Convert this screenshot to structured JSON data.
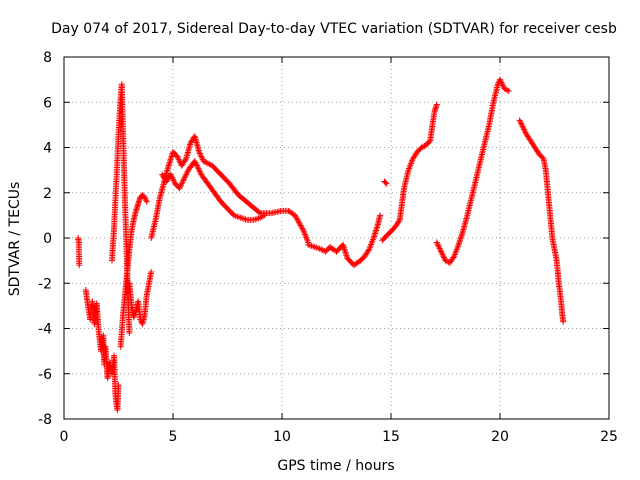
{
  "chart_data": {
    "type": "scatter",
    "title": "Day 074 of 2017, Sidereal Day-to-day VTEC variation (SDTVAR) for receiver cesb",
    "xlabel": "GPS time / hours",
    "ylabel": "SDTVAR / TECUs",
    "xlim": [
      0,
      25
    ],
    "ylim": [
      -8,
      8
    ],
    "xticks": [
      0,
      5,
      10,
      15,
      20,
      25
    ],
    "yticks": [
      -8,
      -6,
      -4,
      -2,
      0,
      2,
      4,
      6,
      8
    ],
    "grid": true,
    "legend": "none",
    "marker": "+",
    "color": "#ff0000",
    "series": [
      {
        "name": "seg1",
        "x": [
          0.65,
          0.68,
          0.7
        ],
        "y": [
          0.0,
          -0.2,
          -1.2
        ]
      },
      {
        "name": "seg2",
        "x": [
          1.0,
          1.1,
          1.2,
          1.3,
          1.4,
          1.5,
          1.55,
          1.6,
          1.7,
          1.8,
          1.85,
          1.9,
          2.0,
          2.1,
          2.2,
          2.3,
          2.35,
          2.4,
          2.45,
          2.5
        ],
        "y": [
          -2.3,
          -3.0,
          -3.6,
          -2.8,
          -3.8,
          -2.9,
          -3.6,
          -4.2,
          -5.0,
          -4.3,
          -5.6,
          -4.8,
          -6.2,
          -5.5,
          -6.0,
          -5.2,
          -6.8,
          -7.3,
          -7.6,
          -6.5
        ]
      },
      {
        "name": "seg3",
        "x": [
          2.2,
          2.3,
          2.35,
          2.4,
          2.45,
          2.5,
          2.55,
          2.6,
          2.65,
          2.7,
          2.75,
          2.8,
          2.85,
          2.9,
          2.95,
          3.0
        ],
        "y": [
          -1.0,
          0.5,
          1.5,
          2.5,
          3.5,
          4.5,
          5.5,
          6.2,
          6.8,
          5.0,
          3.2,
          1.5,
          0.0,
          -1.5,
          -3.0,
          -4.2
        ]
      },
      {
        "name": "seg4",
        "x": [
          2.6,
          2.7,
          2.8,
          2.9,
          3.0,
          3.1,
          3.2,
          3.3,
          3.4,
          3.5,
          3.6,
          3.7,
          3.8
        ],
        "y": [
          -4.8,
          -3.5,
          -2.5,
          -1.5,
          -0.5,
          0.3,
          0.8,
          1.2,
          1.5,
          1.8,
          1.9,
          1.8,
          1.6
        ]
      },
      {
        "name": "seg5",
        "x": [
          3.0,
          3.1,
          3.2,
          3.3,
          3.4,
          3.5,
          3.6,
          3.7,
          3.8,
          3.9,
          4.0
        ],
        "y": [
          -2.0,
          -3.0,
          -3.5,
          -3.2,
          -2.8,
          -3.6,
          -3.8,
          -3.4,
          -2.5,
          -2.0,
          -1.5
        ]
      },
      {
        "name": "seg6",
        "x": [
          4.0,
          4.2,
          4.4,
          4.6,
          4.8,
          5.0,
          5.2,
          5.4,
          5.6,
          5.8,
          6.0,
          6.2,
          6.4,
          6.6,
          6.8,
          7.0,
          7.3,
          7.6,
          8.0,
          8.5,
          9.0,
          9.5,
          10.0,
          10.3,
          10.6,
          11.0,
          11.2
        ],
        "y": [
          0.0,
          0.8,
          1.8,
          2.5,
          3.2,
          3.8,
          3.6,
          3.2,
          3.5,
          4.2,
          4.5,
          3.8,
          3.4,
          3.3,
          3.2,
          3.0,
          2.7,
          2.4,
          1.9,
          1.5,
          1.1,
          1.1,
          1.2,
          1.2,
          1.0,
          0.3,
          -0.2
        ]
      },
      {
        "name": "seg7",
        "x": [
          4.5,
          4.7,
          4.9,
          5.1,
          5.3,
          5.5,
          5.7,
          6.0,
          6.3,
          6.6,
          6.9,
          7.2,
          7.5,
          7.8,
          8.1,
          8.4,
          8.7,
          9.0,
          9.2
        ],
        "y": [
          2.8,
          2.5,
          2.8,
          2.4,
          2.2,
          2.6,
          3.0,
          3.4,
          2.8,
          2.4,
          2.0,
          1.6,
          1.3,
          1.0,
          0.9,
          0.8,
          0.8,
          0.9,
          1.0
        ]
      },
      {
        "name": "seg8",
        "x": [
          11.2,
          11.5,
          11.8,
          12.0,
          12.2,
          12.5,
          12.8,
          13.0,
          13.3,
          13.6,
          13.8,
          14.0,
          14.2,
          14.4,
          14.5
        ],
        "y": [
          -0.3,
          -0.4,
          -0.5,
          -0.6,
          -0.4,
          -0.6,
          -0.3,
          -0.9,
          -1.2,
          -1.0,
          -0.8,
          -0.5,
          0.0,
          0.6,
          1.0
        ]
      },
      {
        "name": "seg9",
        "x": [
          14.7,
          14.8
        ],
        "y": [
          2.5,
          2.4
        ]
      },
      {
        "name": "seg10",
        "x": [
          14.6,
          14.8,
          15.0,
          15.2,
          15.4,
          15.5,
          15.6,
          15.8,
          16.0,
          16.2,
          16.4,
          16.6,
          16.8,
          16.9,
          17.0,
          17.1
        ],
        "y": [
          -0.1,
          0.1,
          0.3,
          0.5,
          0.8,
          1.5,
          2.2,
          3.0,
          3.5,
          3.8,
          4.0,
          4.1,
          4.3,
          5.0,
          5.6,
          5.9
        ]
      },
      {
        "name": "seg11",
        "x": [
          17.1,
          17.3,
          17.5,
          17.7,
          17.9,
          18.1,
          18.3,
          18.5,
          18.7,
          18.9,
          19.1,
          19.3,
          19.5,
          19.7,
          19.9,
          20.0,
          20.1,
          20.2,
          20.4
        ],
        "y": [
          -0.2,
          -0.6,
          -1.0,
          -1.1,
          -0.8,
          -0.3,
          0.3,
          1.0,
          1.8,
          2.6,
          3.4,
          4.2,
          5.0,
          6.0,
          6.8,
          7.0,
          6.8,
          6.6,
          6.5
        ]
      },
      {
        "name": "seg12",
        "x": [
          20.9,
          21.0,
          21.2,
          21.4,
          21.6,
          21.8,
          22.0,
          22.1,
          22.2,
          22.3,
          22.4,
          22.5,
          22.6,
          22.7,
          22.8,
          22.85,
          22.9
        ],
        "y": [
          5.2,
          5.0,
          4.6,
          4.3,
          4.0,
          3.7,
          3.5,
          3.0,
          2.0,
          1.0,
          0.0,
          -0.5,
          -1.0,
          -2.0,
          -2.8,
          -3.3,
          -3.7
        ]
      }
    ]
  }
}
